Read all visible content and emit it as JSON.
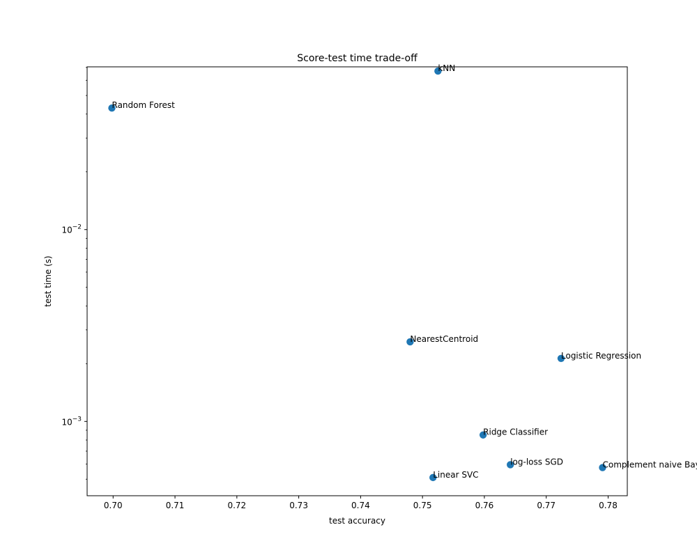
{
  "chart_data": {
    "type": "scatter",
    "title": "Score-test time trade-off",
    "xlabel": "test accuracy",
    "ylabel": "test time (s)",
    "xlim": [
      0.6958,
      0.7831
    ],
    "ylim": [
      0.00041,
      0.0705
    ],
    "yscale": "log",
    "x_ticks": [
      {
        "value": 0.7,
        "label": "0.70"
      },
      {
        "value": 0.71,
        "label": "0.71"
      },
      {
        "value": 0.72,
        "label": "0.72"
      },
      {
        "value": 0.73,
        "label": "0.73"
      },
      {
        "value": 0.74,
        "label": "0.74"
      },
      {
        "value": 0.75,
        "label": "0.75"
      },
      {
        "value": 0.76,
        "label": "0.76"
      },
      {
        "value": 0.77,
        "label": "0.77"
      },
      {
        "value": 0.78,
        "label": "0.78"
      }
    ],
    "y_major_ticks": [
      {
        "value": 0.001,
        "base": "10",
        "exp": "−3"
      },
      {
        "value": 0.01,
        "base": "10",
        "exp": "−2"
      }
    ],
    "y_minor_ticks": [
      0.0004,
      0.0005,
      0.0006,
      0.0007,
      0.0008,
      0.0009,
      0.002,
      0.003,
      0.004,
      0.005,
      0.006,
      0.007,
      0.008,
      0.009,
      0.02,
      0.03,
      0.04,
      0.05,
      0.06,
      0.07
    ],
    "grid": false,
    "marker_color": "#1f77b4",
    "points": [
      {
        "label": "kNN",
        "x": 0.7525,
        "y": 0.067
      },
      {
        "label": "Random Forest",
        "x": 0.6998,
        "y": 0.043
      },
      {
        "label": "NearestCentroid",
        "x": 0.748,
        "y": 0.0026
      },
      {
        "label": "Logistic Regression",
        "x": 0.7724,
        "y": 0.00213
      },
      {
        "label": "Ridge Classifier",
        "x": 0.7598,
        "y": 0.00085
      },
      {
        "label": "log-loss SGD",
        "x": 0.7642,
        "y": 0.000595
      },
      {
        "label": "Complement naive Bayes",
        "x": 0.7791,
        "y": 0.000575
      },
      {
        "label": "Linear SVC",
        "x": 0.7517,
        "y": 0.00051
      }
    ]
  }
}
